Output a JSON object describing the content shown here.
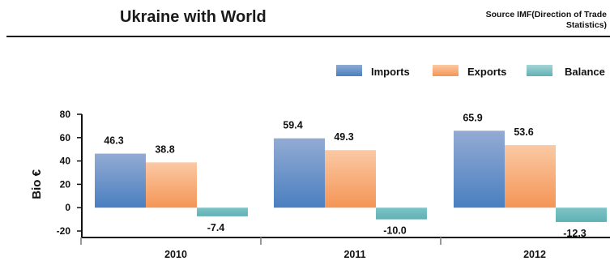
{
  "title": "Ukraine with World",
  "source_line1": "Source IMF(Direction of Trade",
  "source_line2": "Statistics)",
  "chart_data": {
    "type": "bar",
    "title": "Ukraine with World",
    "ylabel": "Bio €",
    "xlabel": "",
    "categories": [
      "2010",
      "2011",
      "2012"
    ],
    "ylim": [
      -20,
      80
    ],
    "yticks": [
      "80",
      "60",
      "40",
      "20",
      "0",
      "-20"
    ],
    "legend_position": "top-right",
    "series": [
      {
        "name": "Imports",
        "values": [
          46.3,
          59.4,
          65.9
        ],
        "labels": [
          "46.3",
          "59.4",
          "65.9"
        ],
        "color": "#4f81bd"
      },
      {
        "name": "Exports",
        "values": [
          38.8,
          49.3,
          53.6
        ],
        "labels": [
          "38.8",
          "49.3",
          "53.6"
        ],
        "color": "#f79646"
      },
      {
        "name": "Balance",
        "values": [
          -7.4,
          -10.0,
          -12.3
        ],
        "labels": [
          "-7.4",
          "-10.0",
          "-12.3"
        ],
        "color": "#5fb1b5"
      }
    ]
  }
}
